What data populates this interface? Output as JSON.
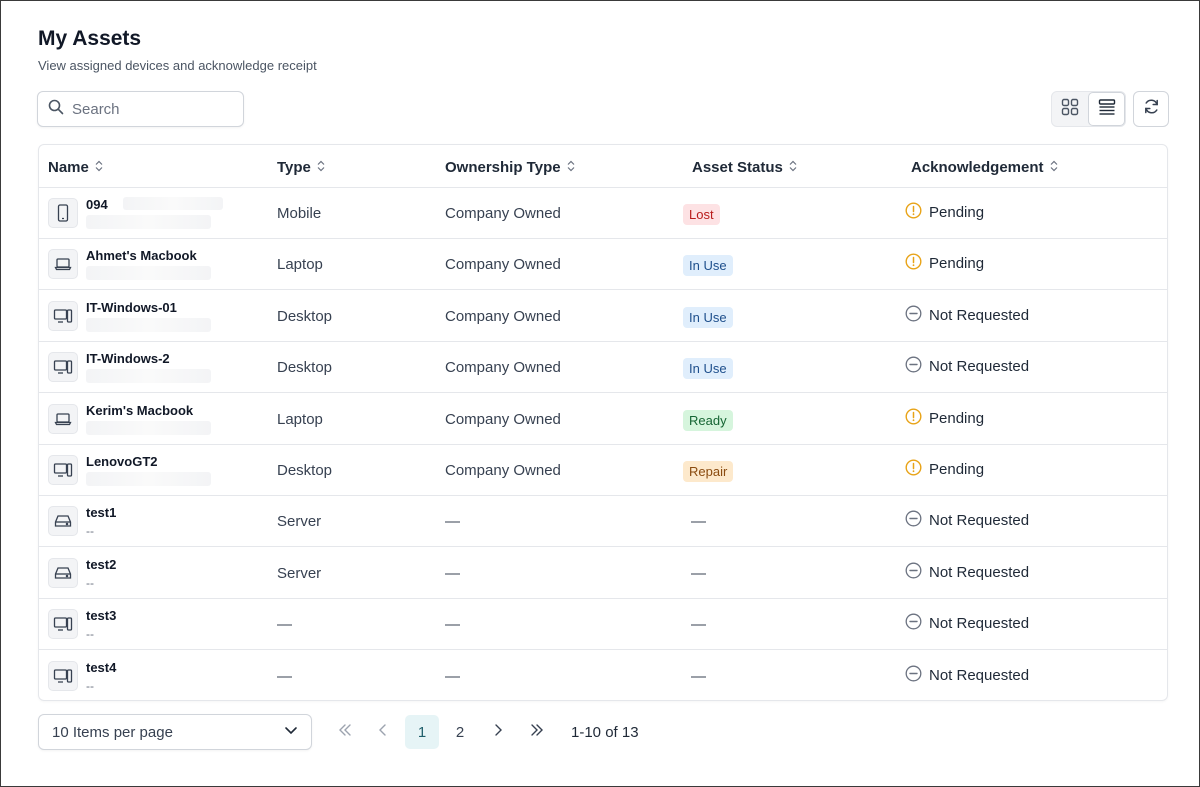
{
  "header": {
    "title": "My Assets",
    "subtitle": "View assigned devices and acknowledge receipt"
  },
  "search": {
    "placeholder": "Search",
    "value": ""
  },
  "toolbar": {
    "grid_view_icon": "grid-icon",
    "list_view_icon": "list-icon",
    "refresh_icon": "refresh-icon",
    "active_view": "list"
  },
  "table": {
    "columns": [
      "Name",
      "Type",
      "Ownership Type",
      "Asset Status",
      "Acknowledgement"
    ],
    "rows": [
      {
        "name": "094",
        "sub": "",
        "device": "mobile",
        "type": "Mobile",
        "ownership": "Company Owned",
        "status": "Lost",
        "status_kind": "lost",
        "ack": "Pending",
        "ack_kind": "pending"
      },
      {
        "name": "Ahmet's Macbook",
        "sub": "",
        "device": "laptop",
        "type": "Laptop",
        "ownership": "Company Owned",
        "status": "In Use",
        "status_kind": "inuse",
        "ack": "Pending",
        "ack_kind": "pending"
      },
      {
        "name": "IT-Windows-01",
        "sub": "",
        "device": "desktop",
        "type": "Desktop",
        "ownership": "Company Owned",
        "status": "In Use",
        "status_kind": "inuse",
        "ack": "Not Requested",
        "ack_kind": "none"
      },
      {
        "name": "IT-Windows-2",
        "sub": "",
        "device": "desktop",
        "type": "Desktop",
        "ownership": "Company Owned",
        "status": "In Use",
        "status_kind": "inuse",
        "ack": "Not Requested",
        "ack_kind": "none"
      },
      {
        "name": "Kerim's Macbook",
        "sub": "",
        "device": "laptop",
        "type": "Laptop",
        "ownership": "Company Owned",
        "status": "Ready",
        "status_kind": "ready",
        "ack": "Pending",
        "ack_kind": "pending"
      },
      {
        "name": "LenovoGT2",
        "sub": "",
        "device": "desktop",
        "type": "Desktop",
        "ownership": "Company Owned",
        "status": "Repair",
        "status_kind": "repair",
        "ack": "Pending",
        "ack_kind": "pending"
      },
      {
        "name": "test1",
        "sub": "--",
        "device": "server",
        "type": "Server",
        "ownership": "—",
        "status": "—",
        "status_kind": "dash",
        "ack": "Not Requested",
        "ack_kind": "none"
      },
      {
        "name": "test2",
        "sub": "--",
        "device": "server",
        "type": "Server",
        "ownership": "—",
        "status": "—",
        "status_kind": "dash",
        "ack": "Not Requested",
        "ack_kind": "none"
      },
      {
        "name": "test3",
        "sub": "--",
        "device": "desktop",
        "type": "—",
        "ownership": "—",
        "status": "—",
        "status_kind": "dash",
        "ack": "Not Requested",
        "ack_kind": "none"
      },
      {
        "name": "test4",
        "sub": "--",
        "device": "desktop",
        "type": "—",
        "ownership": "—",
        "status": "—",
        "status_kind": "dash",
        "ack": "Not Requested",
        "ack_kind": "none"
      }
    ]
  },
  "pagination": {
    "per_page_label": "10 Items per page",
    "pages": [
      "1",
      "2"
    ],
    "current_page": "1",
    "range_label": "1-10 of 13"
  },
  "colors": {
    "pending": "#e8a317",
    "not_requested": "#6b7280"
  }
}
